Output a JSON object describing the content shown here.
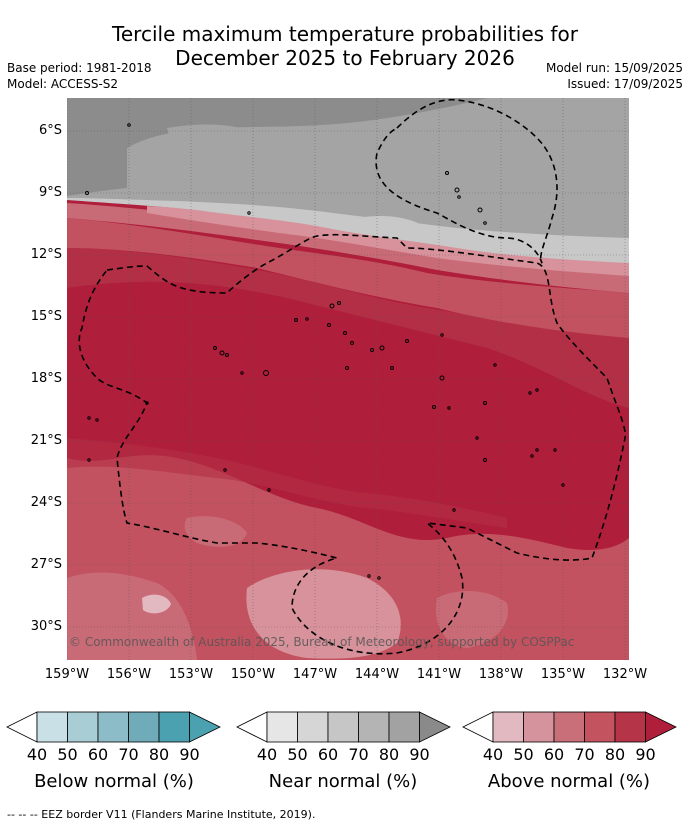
{
  "title_line1": "Tercile maximum temperature probabilities for",
  "title_line2": "December 2025 to February 2026",
  "base_period": "Base period: 1981-2018",
  "model": "Model: ACCESS-S2",
  "model_run": "Model run: 15/09/2025",
  "issued": "Issued: 17/09/2025",
  "lat_labels": [
    "6°S",
    "9°S",
    "12°S",
    "15°S",
    "18°S",
    "21°S",
    "24°S",
    "27°S",
    "30°S"
  ],
  "lon_labels": [
    "159°W",
    "156°W",
    "153°W",
    "150°W",
    "147°W",
    "144°W",
    "141°W",
    "138°W",
    "135°W",
    "132°W"
  ],
  "copyright": "© Commonwealth of Australia 2025, Bureau of Meteorology, supported by COSPPac",
  "colorbars": [
    {
      "title": "Below normal (%)",
      "ticks": [
        "40",
        "50",
        "60",
        "70",
        "80",
        "90"
      ],
      "colors": [
        "#c9e1e6",
        "#a9cdd4",
        "#8cbcc7",
        "#6fabb9",
        "#4ba1b0"
      ]
    },
    {
      "title": "Near normal (%)",
      "ticks": [
        "40",
        "50",
        "60",
        "70",
        "80",
        "90"
      ],
      "colors": [
        "#e6e6e6",
        "#d6d6d6",
        "#c6c6c6",
        "#b4b4b4",
        "#a2a2a2",
        "#8a8a8a"
      ]
    },
    {
      "title": "Above normal (%)",
      "ticks": [
        "40",
        "50",
        "60",
        "70",
        "80",
        "90"
      ],
      "colors": [
        "#e2b9c0",
        "#d5949d",
        "#c96f7a",
        "#c2535f",
        "#b53448",
        "#af1f3b"
      ]
    }
  ],
  "footnote": "-- -- -- EEZ border V11 (Flanders Marine Institute, 2019).",
  "colors": {
    "near_80": "#8c8c8c",
    "near_70": "#a4a4a4",
    "near_60": "#c8c8c8",
    "above_50": "#d7929b",
    "above_60": "#c96b77",
    "above_70": "#c2525f",
    "above_80": "#b22f45",
    "above_90": "#af1e3b"
  }
}
